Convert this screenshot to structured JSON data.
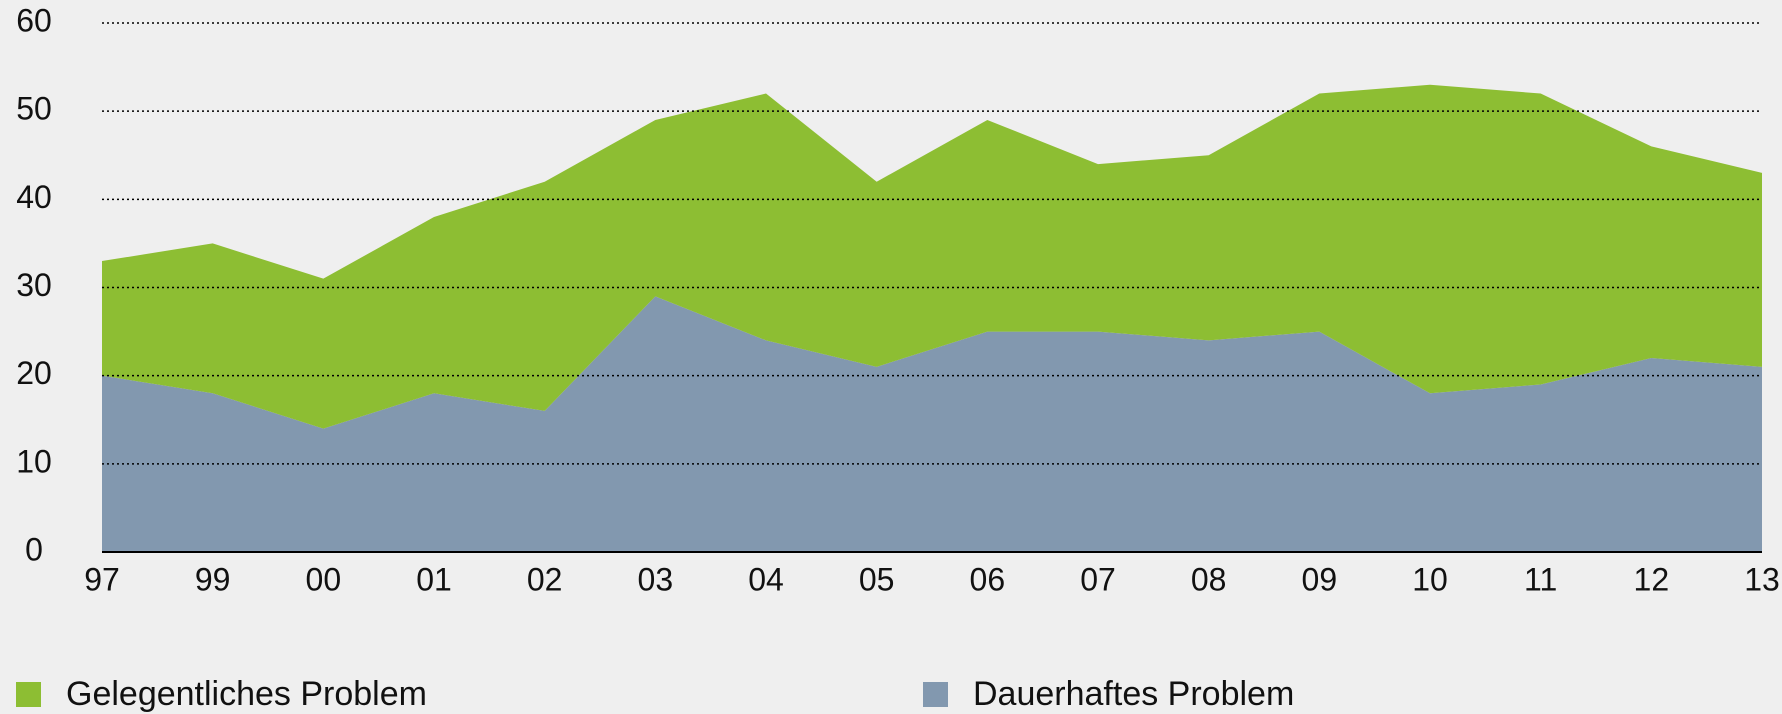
{
  "chart_data": {
    "type": "area",
    "stacked": true,
    "categories": [
      "97",
      "99",
      "00",
      "01",
      "02",
      "03",
      "04",
      "05",
      "06",
      "07",
      "08",
      "09",
      "10",
      "11",
      "12",
      "13"
    ],
    "series": [
      {
        "name": "Gelegentliches Problem",
        "color": "#8dbe33",
        "values": [
          13,
          17,
          17,
          20,
          26,
          20,
          28,
          21,
          24,
          19,
          21,
          27,
          35,
          33,
          24,
          22
        ]
      },
      {
        "name": "Dauerhaftes Problem",
        "color": "#8298af",
        "values": [
          20,
          18,
          14,
          18,
          16,
          29,
          24,
          21,
          25,
          25,
          24,
          25,
          18,
          19,
          22,
          21
        ]
      }
    ],
    "stack_order": [
      1,
      0
    ],
    "ylim": [
      0,
      60
    ],
    "yticks": [
      0,
      10,
      20,
      30,
      40,
      50,
      60
    ],
    "grid": true
  }
}
